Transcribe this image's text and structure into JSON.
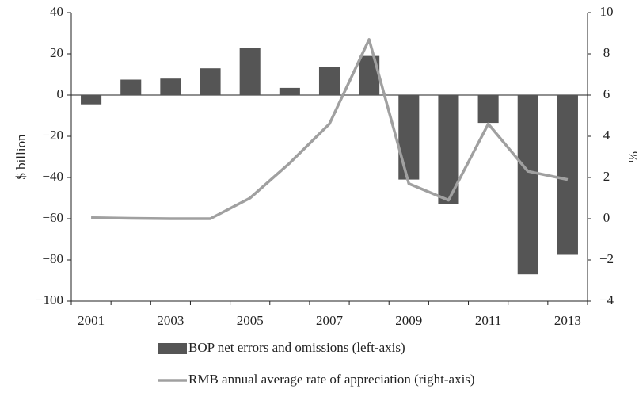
{
  "chart_data": {
    "type": "bar-line",
    "categories": [
      2001,
      null,
      2003,
      null,
      2005,
      null,
      2007,
      null,
      2009,
      null,
      2011,
      null,
      2013
    ],
    "y_label": "$ billion",
    "y2_label": "%",
    "ylim": [
      -100,
      40
    ],
    "yticks": [
      {
        "value": -100,
        "label": "−100"
      },
      {
        "value": -80,
        "label": "−80"
      },
      {
        "value": -60,
        "label": "−60"
      },
      {
        "value": -40,
        "label": "−40"
      },
      {
        "value": -20,
        "label": "−20"
      },
      0,
      20,
      40
    ],
    "y2lim": [
      -4,
      10
    ],
    "y2ticks": [
      {
        "value": -4,
        "label": "−4"
      },
      {
        "value": -2,
        "label": "−2"
      },
      0,
      2,
      4,
      6,
      8,
      10
    ],
    "legend": "bottom",
    "series": [
      {
        "name": "BOP net errors and omissions (left-axis)",
        "type": "bar",
        "color": "#555555",
        "values": [
          -4.5,
          7.5,
          8,
          13,
          23,
          3.5,
          13.5,
          19,
          -41,
          -53,
          -13.5,
          -87,
          -77.5
        ]
      },
      {
        "name": "RMB annual average rate of appreciation (right-axis)",
        "type": "line",
        "axis": "y2",
        "color": "#a0a0a0",
        "values": [
          0.05,
          0.02,
          0,
          0,
          1.0,
          2.7,
          4.6,
          8.7,
          1.7,
          0.9,
          4.6,
          2.3,
          1.9
        ]
      }
    ]
  }
}
